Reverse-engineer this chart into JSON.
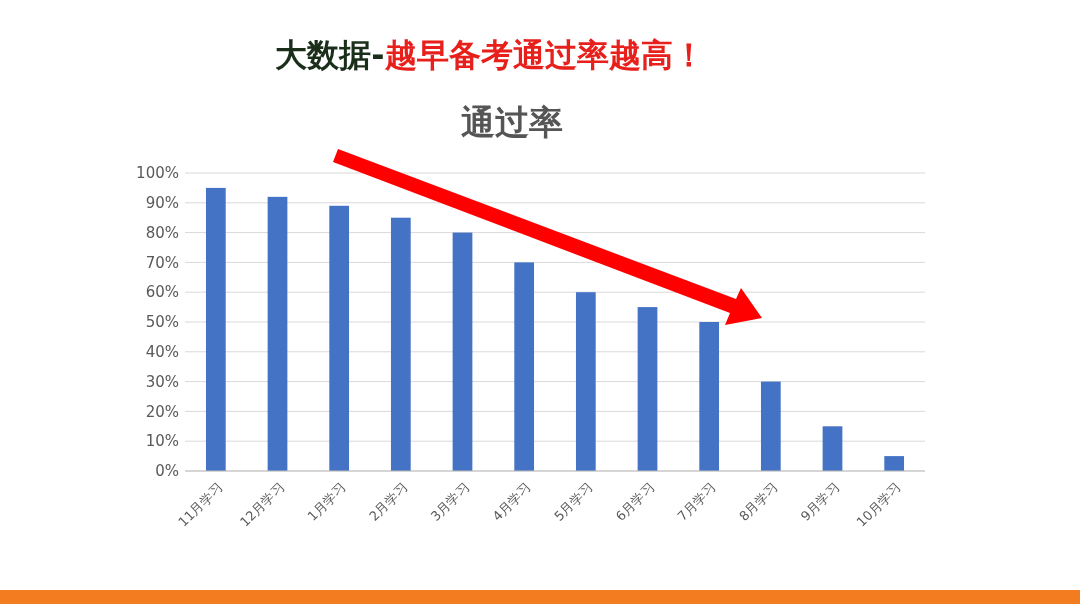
{
  "chart_data": {
    "type": "bar",
    "title": "大数据-越早备考通过率越高！",
    "subtitle": "通过率",
    "categories": [
      "11月学习",
      "12月学习",
      "1月学习",
      "2月学习",
      "3月学习",
      "4月学习",
      "5月学习",
      "6月学习",
      "7月学习",
      "8月学习",
      "9月学习",
      "10月学习"
    ],
    "values": [
      95,
      92,
      89,
      85,
      80,
      70,
      60,
      55,
      50,
      30,
      15,
      5
    ],
    "color": "#4472c4",
    "ylim": [
      0,
      100
    ],
    "yticks": [
      {
        "value": 0,
        "label": "0%"
      },
      {
        "value": 10,
        "label": "10%"
      },
      {
        "value": 20,
        "label": "20%"
      },
      {
        "value": 30,
        "label": "30%"
      },
      {
        "value": 40,
        "label": "40%"
      },
      {
        "value": 50,
        "label": "50%"
      },
      {
        "value": 60,
        "label": "60%"
      },
      {
        "value": 70,
        "label": "70%"
      },
      {
        "value": 80,
        "label": "80%"
      },
      {
        "value": 90,
        "label": "90%"
      },
      {
        "value": 100,
        "label": "100%"
      }
    ],
    "grid": "y"
  }
}
